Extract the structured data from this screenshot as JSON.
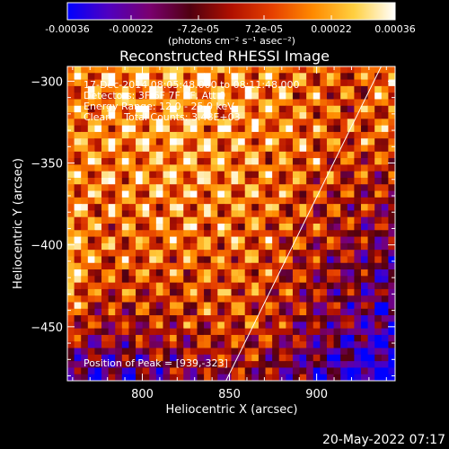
{
  "colorbar": {
    "ticks": [
      "-0.00036",
      "-0.00022",
      "-7.2e-05",
      "7.2e-05",
      "0.00022",
      "0.00036"
    ],
    "tick_values": [
      -0.00036,
      -0.00022,
      -7.2e-05,
      7.2e-05,
      0.00022,
      0.00036
    ],
    "units": "(photons cm⁻² s⁻¹ asec⁻²)",
    "range": [
      -0.00036,
      0.00036
    ],
    "colors": [
      "#0000ff",
      "#5000c0",
      "#7a0070",
      "#500010",
      "#b01000",
      "#e64000",
      "#ff8a00",
      "#ffd040",
      "#ffffff"
    ]
  },
  "chart_data": {
    "type": "heatmap",
    "title": "Reconstructed RHESSI Image",
    "xlabel": "Heliocentric X (arcsec)",
    "ylabel": "Heliocentric Y (arcsec)",
    "xlim": [
      757,
      945
    ],
    "ylim": [
      -483,
      -291
    ],
    "x_ticks": [
      800,
      850,
      900
    ],
    "x_tick_labels": [
      "800",
      "850",
      "900"
    ],
    "y_ticks": [
      -300,
      -350,
      -400,
      -450
    ],
    "y_tick_labels": [
      "−300",
      "−350",
      "−400",
      "−450"
    ],
    "annotations": [
      "17-Dec-2014 08:05:48.000 to 08:11:48.000",
      "Detectors: 3F 6F 7F 9F, Att 0",
      "Energy Range: 12.0 - 25.0 keV",
      "Clean    Total Counts: 3.48E+03"
    ],
    "peak_label": "Position of Peak = [939,-323]",
    "peak": [
      939,
      -323
    ],
    "limb_line": {
      "from": [
        848,
        -483
      ],
      "to": [
        937,
        -291
      ]
    },
    "grid": false,
    "image_shape": [
      48,
      48
    ]
  },
  "timestamp": "20-May-2022 07:17"
}
